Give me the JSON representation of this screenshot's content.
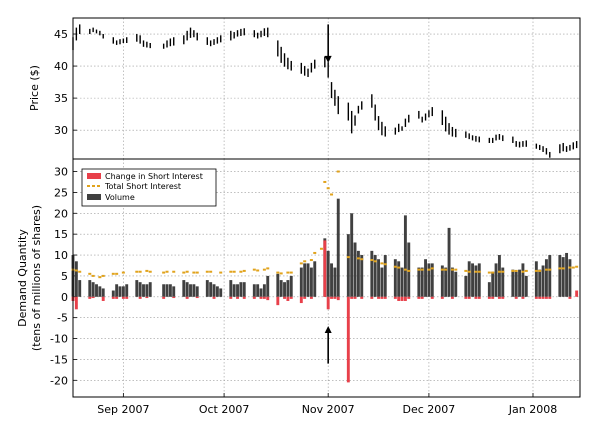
{
  "chart_data": [
    {
      "type": "ohlc",
      "panel": "top",
      "ylabel": "Price ($)",
      "ylim": [
        25.5,
        47.5
      ],
      "yticks": [
        30,
        35,
        40,
        45
      ],
      "xlim": [
        0,
        151
      ],
      "grid": true,
      "annotations": [
        {
          "type": "arrow-down",
          "x": 76,
          "from": 46.5,
          "to": 40.5
        }
      ],
      "days": [
        0,
        1,
        2,
        5,
        6,
        7,
        8,
        9,
        12,
        13,
        14,
        15,
        16,
        19,
        20,
        21,
        22,
        23,
        27,
        28,
        29,
        30,
        33,
        34,
        35,
        36,
        37,
        40,
        41,
        42,
        43,
        44,
        47,
        48,
        49,
        50,
        51,
        54,
        55,
        56,
        57,
        58,
        61,
        62,
        63,
        64,
        65,
        68,
        69,
        70,
        71,
        72,
        75,
        76,
        77,
        78,
        79,
        82,
        83,
        84,
        85,
        86,
        89,
        90,
        91,
        92,
        93,
        96,
        97,
        98,
        99,
        100,
        103,
        104,
        105,
        106,
        107,
        110,
        111,
        112,
        113,
        114,
        117,
        118,
        119,
        120,
        121,
        124,
        125,
        126,
        127,
        128,
        131,
        132,
        133,
        134,
        135,
        138,
        139,
        140,
        141,
        142,
        145,
        146,
        147,
        148,
        149,
        150
      ],
      "high": [
        44.5,
        46,
        46.5,
        45.8,
        46,
        45.7,
        45.5,
        45,
        44.5,
        44,
        44.2,
        44.3,
        44.5,
        45,
        44.8,
        44,
        43.8,
        43.6,
        43.5,
        44,
        44.3,
        44.5,
        44.8,
        45.5,
        46,
        45.6,
        45.2,
        44.5,
        44,
        44.2,
        44.5,
        44.8,
        45.5,
        45.3,
        45.6,
        45.8,
        45.9,
        45.6,
        45.2,
        45.5,
        45.9,
        46,
        44,
        43,
        42,
        41.3,
        40.8,
        40.5,
        40,
        39.6,
        40.5,
        41,
        41.5,
        40.6,
        37.5,
        36.3,
        35.3,
        34.3,
        33,
        32.3,
        33.8,
        34.5,
        35.6,
        34,
        32.2,
        31.3,
        30.6,
        30.4,
        31,
        30.6,
        31.8,
        32.4,
        33,
        32.1,
        32.6,
        33.1,
        33.6,
        33.1,
        32.1,
        31.1,
        30.5,
        30.2,
        29.8,
        29.5,
        29.2,
        29.1,
        29,
        28.8,
        28.8,
        29.3,
        29.4,
        29.2,
        29,
        28.3,
        28.2,
        28.3,
        28.4,
        27.9,
        27.7,
        27.5,
        27.2,
        26.6,
        27.8,
        28,
        27.5,
        27.7,
        28.1,
        28.3
      ],
      "low": [
        42.5,
        44,
        45,
        45,
        45.3,
        45.1,
        44.8,
        44.3,
        43.5,
        43.3,
        43.4,
        43.6,
        43.6,
        43.8,
        43.5,
        43,
        42.9,
        42.8,
        42.7,
        42.9,
        43.1,
        43.2,
        43.4,
        44,
        44.4,
        44.5,
        44,
        43.3,
        43.1,
        43.3,
        43.5,
        43.7,
        44,
        44.3,
        44.6,
        44.7,
        44.8,
        44.5,
        44.3,
        44.5,
        44.7,
        44.5,
        41.5,
        40.5,
        39.9,
        39.5,
        39.3,
        38.8,
        38.5,
        38.3,
        39,
        39.6,
        39.8,
        38.2,
        35,
        33.8,
        32.5,
        31.5,
        29.5,
        30.7,
        32.6,
        33.2,
        33.5,
        31.5,
        30,
        29.2,
        29,
        29.3,
        29.7,
        29.9,
        30.5,
        31.2,
        31.8,
        31.2,
        31.5,
        32,
        32.2,
        30.8,
        29.8,
        29.3,
        29,
        28.9,
        28.8,
        28.6,
        28.4,
        28.2,
        28.1,
        28,
        28,
        28.4,
        28.5,
        28.3,
        28,
        27.4,
        27.3,
        27.4,
        27.4,
        27.1,
        26.9,
        26.6,
        26.2,
        25.7,
        26.4,
        26.7,
        26.6,
        26.8,
        27,
        27.2
      ]
    },
    {
      "type": "bar+scatter",
      "panel": "bottom",
      "ylabel_line1": "Demand Quantity",
      "ylabel_line2": "(tens of millions of shares)",
      "ylim": [
        -24,
        33
      ],
      "yticks": [
        -20,
        -15,
        -10,
        -5,
        0,
        5,
        10,
        15,
        20,
        25,
        30
      ],
      "xlim": [
        0,
        151
      ],
      "xticks": [
        {
          "day": 15,
          "label": "Sep 2007"
        },
        {
          "day": 45,
          "label": "Oct 2007"
        },
        {
          "day": 76,
          "label": "Nov 2007"
        },
        {
          "day": 106,
          "label": "Dec 2007"
        },
        {
          "day": 137,
          "label": "Jan 2008"
        }
      ],
      "grid": true,
      "legend": {
        "position": "top-left",
        "entries": [
          {
            "label": "Change in Short Interest",
            "color": "#e8404a",
            "marker": "patch"
          },
          {
            "label": "Total Short Interest",
            "color": "#e1a31c",
            "marker": "dash"
          },
          {
            "label": "Volume",
            "color": "#404040",
            "marker": "patch"
          }
        ]
      },
      "annotations": [
        {
          "type": "arrow-up",
          "x": 76,
          "from": -16,
          "to": -7
        }
      ],
      "days": [
        0,
        1,
        2,
        5,
        6,
        7,
        8,
        9,
        12,
        13,
        14,
        15,
        16,
        19,
        20,
        21,
        22,
        23,
        27,
        28,
        29,
        30,
        33,
        34,
        35,
        36,
        37,
        40,
        41,
        42,
        43,
        44,
        47,
        48,
        49,
        50,
        51,
        54,
        55,
        56,
        57,
        58,
        61,
        62,
        63,
        64,
        65,
        68,
        69,
        70,
        71,
        72,
        75,
        76,
        77,
        78,
        79,
        82,
        83,
        84,
        85,
        86,
        89,
        90,
        91,
        92,
        93,
        96,
        97,
        98,
        99,
        100,
        103,
        104,
        105,
        106,
        107,
        110,
        111,
        112,
        113,
        114,
        117,
        118,
        119,
        120,
        121,
        124,
        125,
        126,
        127,
        128,
        131,
        132,
        133,
        134,
        135,
        138,
        139,
        140,
        141,
        142,
        145,
        146,
        147,
        148,
        149,
        150
      ],
      "series": [
        {
          "name": "Volume",
          "values": [
            10,
            8.5,
            4,
            4,
            3.5,
            3,
            2.5,
            2,
            1.5,
            3,
            2.5,
            2.5,
            3,
            4,
            3.5,
            3,
            3,
            3.5,
            3,
            3,
            3,
            2.5,
            4,
            3.5,
            3,
            3,
            2.5,
            4,
            3.5,
            3,
            2.5,
            2,
            4,
            3,
            3,
            3.5,
            3.5,
            3,
            3,
            2,
            3,
            5,
            5.5,
            4,
            3.5,
            4,
            5,
            7,
            8,
            8,
            7,
            8.5,
            14,
            11,
            8,
            7,
            23.5,
            15,
            20,
            13,
            11,
            10,
            11,
            10,
            9,
            7,
            10,
            9,
            8.5,
            7,
            19.5,
            13,
            7,
            7,
            9,
            8,
            8,
            7.5,
            7,
            16.5,
            7,
            6,
            5,
            8.5,
            8,
            7.5,
            8,
            3.5,
            6,
            8,
            10,
            7,
            6.5,
            6,
            6.5,
            8,
            5,
            8.5,
            6.5,
            7.5,
            9,
            10,
            10,
            9.5,
            10.5,
            9
          ]
        },
        {
          "name": "Change in Short Interest",
          "values": [
            -1,
            -3,
            0,
            -0.5,
            -0.3,
            0,
            0,
            -1,
            -0.5,
            -0.5,
            0,
            -0.5,
            -0.5,
            0,
            -0.5,
            0,
            -0.3,
            0,
            -0.5,
            0,
            0,
            -0.3,
            0,
            -0.5,
            0,
            0,
            -0.3,
            0,
            0,
            -0.5,
            0,
            0,
            -0.5,
            0,
            -0.5,
            0,
            -0.5,
            -0.5,
            0,
            -0.5,
            -0.5,
            -0.8,
            -2,
            0,
            -0.5,
            -1,
            -0.5,
            -1.5,
            -0.5,
            0,
            -0.5,
            0,
            13.5,
            -3,
            -0.5,
            -0.5,
            -0.8,
            -20.5,
            -0.5,
            -0.5,
            0,
            -0.5,
            -0.5,
            0,
            -0.5,
            -0.5,
            -0.5,
            -0.5,
            -1,
            -1,
            -1,
            -0.5,
            -0.5,
            -0.5,
            0,
            0,
            -0.5,
            -0.5,
            0,
            0,
            -0.5,
            0,
            -0.5,
            -0.5,
            0,
            -0.5,
            -0.5,
            -0.5,
            -0.5,
            0,
            -0.5,
            -0.5,
            0,
            -0.5,
            0,
            -0.5,
            0,
            -0.5,
            -0.5,
            -0.5,
            -0.5,
            -0.5,
            0,
            0,
            0,
            -0.5,
            0,
            1.5
          ]
        },
        {
          "name": "Total Short Interest",
          "type": "scatter",
          "days": [
            0,
            1,
            2,
            5,
            6,
            8,
            9,
            12,
            13,
            15,
            19,
            20,
            22,
            23,
            27,
            28,
            30,
            33,
            34,
            36,
            37,
            40,
            41,
            44,
            47,
            48,
            50,
            51,
            54,
            55,
            57,
            58,
            61,
            62,
            64,
            65,
            68,
            69,
            71,
            72,
            74,
            75,
            76,
            77,
            79,
            82,
            85,
            86,
            89,
            90,
            92,
            93,
            96,
            97,
            99,
            100,
            103,
            104,
            106,
            107,
            110,
            111,
            113,
            114,
            117,
            118,
            120,
            121,
            124,
            125,
            127,
            128,
            131,
            132,
            134,
            135,
            138,
            139,
            141,
            142,
            145,
            146,
            148,
            149,
            150
          ],
          "values": [
            6.5,
            6.3,
            6,
            5.5,
            5,
            4.7,
            5,
            5.5,
            5.5,
            5.8,
            6,
            6,
            6.2,
            6,
            5.8,
            6,
            6,
            5.8,
            6,
            5.8,
            5.8,
            6,
            6,
            5.8,
            6,
            6,
            6,
            6.2,
            6.5,
            6.3,
            6.5,
            6.8,
            5.8,
            5.6,
            5.8,
            5.8,
            8,
            8.5,
            8.8,
            10.5,
            11.5,
            27.5,
            26,
            24.5,
            30,
            9.5,
            9.2,
            9,
            8.8,
            8.5,
            8,
            7.8,
            7.2,
            7,
            6.5,
            6.2,
            6.5,
            6.5,
            6.5,
            6.8,
            6.5,
            6.5,
            6.5,
            6.5,
            6.2,
            6,
            6,
            6,
            5.8,
            5.8,
            6,
            6,
            6.2,
            6.2,
            6,
            6.2,
            6.2,
            6.2,
            6.5,
            6.5,
            6.8,
            6.8,
            7,
            7,
            7.2
          ]
        }
      ]
    }
  ]
}
